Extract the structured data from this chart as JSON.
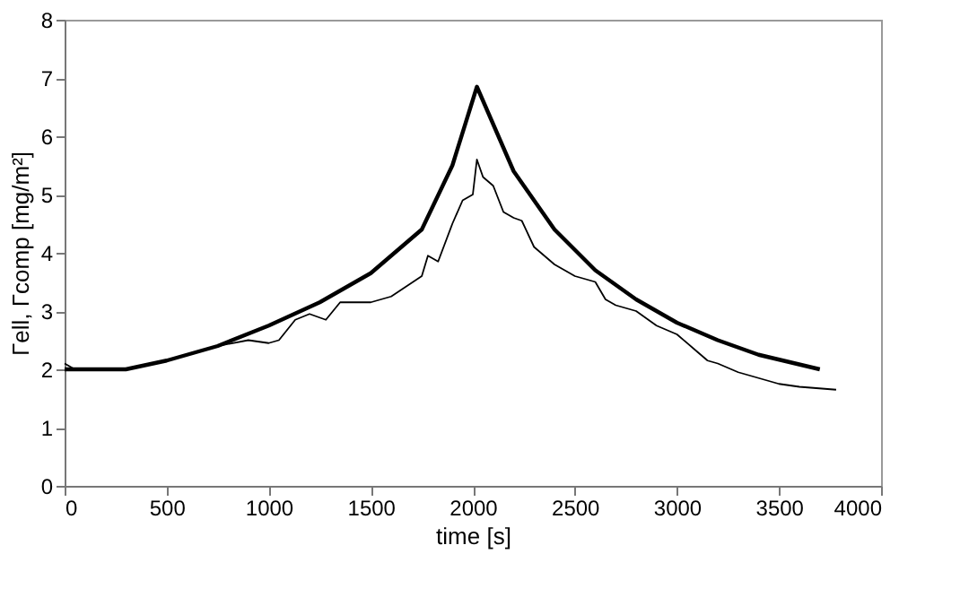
{
  "chart_data": {
    "type": "line",
    "xlabel": "time [s]",
    "ylabel": "Γell, Γcomp [mg/m²]",
    "xlim": [
      0,
      4000
    ],
    "xticks": [
      0,
      500,
      1000,
      1500,
      2000,
      2500,
      3000,
      3500,
      4000
    ],
    "ylim": [
      0,
      8
    ],
    "yticks": [
      0,
      1,
      2,
      3,
      4,
      5,
      6,
      7,
      8
    ],
    "grid": false,
    "marker": "none",
    "line_style": "solid",
    "series": [
      {
        "color": "#000000",
        "x": [
          0,
          300,
          500,
          750,
          1000,
          1250,
          1500,
          1750,
          1900,
          2020,
          2200,
          2400,
          2600,
          2800,
          3000,
          3200,
          3400,
          3700
        ],
        "values": [
          2.0,
          2.0,
          2.15,
          2.4,
          2.75,
          3.15,
          3.65,
          4.4,
          5.5,
          6.85,
          5.4,
          4.4,
          3.7,
          3.2,
          2.8,
          2.5,
          2.25,
          2.0
        ]
      },
      {
        "color": "#000000",
        "x": [
          0,
          50,
          300,
          500,
          750,
          900,
          1000,
          1050,
          1130,
          1200,
          1280,
          1350,
          1500,
          1600,
          1750,
          1780,
          1830,
          1900,
          1950,
          2000,
          2020,
          2050,
          2100,
          2150,
          2200,
          2240,
          2300,
          2400,
          2500,
          2600,
          2650,
          2700,
          2800,
          2900,
          3000,
          3100,
          3150,
          3200,
          3300,
          3400,
          3500,
          3600,
          3780
        ],
        "values": [
          2.1,
          2.0,
          2.0,
          2.15,
          2.4,
          2.5,
          2.45,
          2.5,
          2.85,
          2.95,
          2.85,
          3.15,
          3.15,
          3.25,
          3.6,
          3.95,
          3.85,
          4.5,
          4.9,
          5.0,
          5.6,
          5.3,
          5.15,
          4.7,
          4.6,
          4.55,
          4.1,
          3.8,
          3.6,
          3.5,
          3.2,
          3.1,
          3.0,
          2.75,
          2.6,
          2.3,
          2.15,
          2.1,
          1.95,
          1.85,
          1.75,
          1.7,
          1.65
        ]
      }
    ]
  }
}
